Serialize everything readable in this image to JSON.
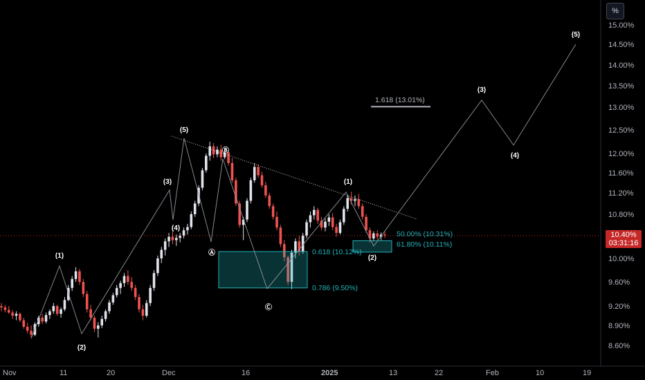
{
  "toolbar": {
    "scale_button": "%"
  },
  "last_price": {
    "value": "10.40%",
    "countdown": "03:31:16",
    "color": "#c62828"
  },
  "colors": {
    "up": "#e0e3eb",
    "down": "#ef5350",
    "fib": "#22b3ba",
    "wave": "#ffffff",
    "trend": "#ffffff"
  },
  "chart_data": {
    "type": "candlestick",
    "y_unit": "%",
    "y_ticks": [
      "15.00%",
      "14.50%",
      "14.00%",
      "13.50%",
      "13.00%",
      "12.50%",
      "12.00%",
      "11.60%",
      "11.20%",
      "10.80%",
      "10.40%",
      "10.00%",
      "9.60%",
      "9.20%",
      "8.90%",
      "8.60%"
    ],
    "x_ticks": [
      "Nov",
      "11",
      "20",
      "Dec",
      "16",
      "2025",
      "13",
      "22",
      "Feb",
      "10",
      "19"
    ],
    "wave_labels": [
      {
        "label": "(1)",
        "value": 9.84
      },
      {
        "label": "(2)",
        "value": 8.74
      },
      {
        "label": "(3)",
        "value": 11.2
      },
      {
        "label": "(4)",
        "value": 10.58
      },
      {
        "label": "(5)",
        "value": 12.25
      },
      {
        "label": "Ⓐ",
        "value": 10.3
      },
      {
        "label": "Ⓑ",
        "value": 12.0
      },
      {
        "label": "Ⓒ",
        "value": 9.48
      },
      {
        "label": "(1)",
        "value": 11.22
      },
      {
        "label": "(2)",
        "value": 10.28
      },
      {
        "label": "(3)",
        "value": 13.18
      },
      {
        "label": "(4)",
        "value": 12.2
      },
      {
        "label": "(5)",
        "value": 14.5
      }
    ],
    "fib_levels": [
      {
        "label": "0.618 (10.12%)",
        "value": 10.12
      },
      {
        "label": "0.786 (9.50%)",
        "value": 9.5
      },
      {
        "label": "50.00% (10.31%)",
        "value": 10.31
      },
      {
        "label": "61.80% (10.11%)",
        "value": 10.11
      },
      {
        "label": "1.618 (13.01%)",
        "value": 13.01
      }
    ],
    "candles": [
      [
        9.2,
        9.25,
        9.12,
        9.18
      ],
      [
        9.18,
        9.22,
        9.1,
        9.14
      ],
      [
        9.14,
        9.2,
        9.08,
        9.1
      ],
      [
        9.1,
        9.14,
        9.0,
        9.05
      ],
      [
        9.05,
        9.12,
        8.98,
        9.08
      ],
      [
        9.08,
        9.1,
        8.95,
        8.98
      ],
      [
        8.98,
        9.02,
        8.85,
        8.88
      ],
      [
        8.88,
        8.94,
        8.78,
        8.82
      ],
      [
        8.82,
        8.9,
        8.72,
        8.76
      ],
      [
        8.76,
        8.95,
        8.74,
        8.92
      ],
      [
        8.92,
        9.05,
        8.88,
        9.02
      ],
      [
        9.02,
        9.08,
        8.92,
        8.96
      ],
      [
        8.96,
        9.1,
        8.93,
        9.06
      ],
      [
        9.06,
        9.15,
        9.0,
        9.12
      ],
      [
        9.12,
        9.25,
        9.08,
        9.2
      ],
      [
        9.2,
        9.22,
        9.05,
        9.08
      ],
      [
        9.08,
        9.18,
        9.02,
        9.15
      ],
      [
        9.15,
        9.35,
        9.12,
        9.3
      ],
      [
        9.3,
        9.55,
        9.28,
        9.5
      ],
      [
        9.5,
        9.7,
        9.45,
        9.65
      ],
      [
        9.65,
        9.85,
        9.6,
        9.78
      ],
      [
        9.78,
        9.82,
        9.55,
        9.6
      ],
      [
        9.6,
        9.65,
        9.35,
        9.4
      ],
      [
        9.4,
        9.45,
        9.1,
        9.15
      ],
      [
        9.15,
        9.22,
        8.98,
        9.02
      ],
      [
        9.02,
        9.05,
        8.8,
        8.85
      ],
      [
        8.85,
        8.95,
        8.72,
        8.9
      ],
      [
        8.9,
        9.05,
        8.86,
        9.0
      ],
      [
        9.0,
        9.15,
        8.96,
        9.12
      ],
      [
        9.12,
        9.3,
        9.08,
        9.26
      ],
      [
        9.26,
        9.42,
        9.22,
        9.38
      ],
      [
        9.38,
        9.55,
        9.34,
        9.5
      ],
      [
        9.5,
        9.62,
        9.4,
        9.58
      ],
      [
        9.58,
        9.75,
        9.52,
        9.7
      ],
      [
        9.7,
        9.8,
        9.55,
        9.6
      ],
      [
        9.6,
        9.68,
        9.45,
        9.5
      ],
      [
        9.5,
        9.55,
        9.3,
        9.35
      ],
      [
        9.35,
        9.4,
        9.1,
        9.15
      ],
      [
        9.15,
        9.22,
        8.98,
        9.05
      ],
      [
        9.05,
        9.3,
        9.02,
        9.25
      ],
      [
        9.25,
        9.55,
        9.2,
        9.5
      ],
      [
        9.5,
        9.8,
        9.45,
        9.75
      ],
      [
        9.75,
        10.05,
        9.7,
        10.0
      ],
      [
        10.0,
        10.2,
        9.92,
        10.15
      ],
      [
        10.15,
        10.35,
        10.05,
        10.3
      ],
      [
        10.3,
        10.45,
        10.2,
        10.38
      ],
      [
        10.38,
        10.48,
        10.25,
        10.32
      ],
      [
        10.32,
        10.42,
        10.22,
        10.36
      ],
      [
        10.36,
        10.45,
        10.28,
        10.4
      ],
      [
        10.4,
        10.55,
        10.35,
        10.5
      ],
      [
        10.5,
        10.62,
        10.42,
        10.56
      ],
      [
        10.56,
        10.85,
        10.52,
        10.8
      ],
      [
        10.8,
        11.05,
        10.75,
        11.0
      ],
      [
        11.0,
        11.35,
        10.95,
        11.3
      ],
      [
        11.3,
        11.7,
        11.25,
        11.65
      ],
      [
        11.65,
        12.0,
        11.6,
        11.95
      ],
      [
        11.95,
        12.25,
        11.85,
        12.15
      ],
      [
        12.15,
        12.22,
        11.9,
        11.98
      ],
      [
        11.98,
        12.15,
        11.92,
        12.08
      ],
      [
        12.08,
        12.18,
        11.85,
        11.92
      ],
      [
        11.92,
        12.1,
        11.88,
        12.02
      ],
      [
        12.02,
        12.08,
        11.75,
        11.8
      ],
      [
        11.8,
        11.9,
        11.4,
        11.45
      ],
      [
        11.45,
        11.5,
        10.95,
        11.0
      ],
      [
        11.0,
        11.05,
        10.55,
        10.6
      ],
      [
        10.6,
        10.75,
        10.32,
        10.7
      ],
      [
        10.7,
        11.1,
        10.65,
        11.05
      ],
      [
        11.05,
        11.5,
        11.0,
        11.45
      ],
      [
        11.45,
        11.8,
        11.4,
        11.72
      ],
      [
        11.72,
        11.78,
        11.5,
        11.55
      ],
      [
        11.55,
        11.62,
        11.3,
        11.35
      ],
      [
        11.35,
        11.42,
        11.1,
        11.15
      ],
      [
        11.15,
        11.2,
        10.9,
        10.95
      ],
      [
        10.95,
        11.0,
        10.7,
        10.75
      ],
      [
        10.75,
        10.85,
        10.5,
        10.55
      ],
      [
        10.55,
        10.6,
        10.2,
        10.25
      ],
      [
        10.25,
        10.32,
        9.95,
        10.02
      ],
      [
        10.02,
        10.05,
        9.55,
        9.6
      ],
      [
        9.6,
        10.15,
        9.48,
        10.1
      ],
      [
        10.1,
        10.35,
        10.0,
        10.3
      ],
      [
        10.3,
        10.4,
        10.05,
        10.12
      ],
      [
        10.12,
        10.45,
        10.08,
        10.4
      ],
      [
        10.4,
        10.7,
        10.35,
        10.65
      ],
      [
        10.65,
        10.85,
        10.55,
        10.78
      ],
      [
        10.78,
        10.95,
        10.7,
        10.88
      ],
      [
        10.88,
        10.92,
        10.62,
        10.68
      ],
      [
        10.68,
        10.75,
        10.5,
        10.55
      ],
      [
        10.55,
        10.72,
        10.48,
        10.66
      ],
      [
        10.66,
        10.8,
        10.58,
        10.74
      ],
      [
        10.74,
        10.82,
        10.5,
        10.56
      ],
      [
        10.56,
        10.62,
        10.38,
        10.45
      ],
      [
        10.45,
        10.7,
        10.42,
        10.65
      ],
      [
        10.65,
        10.95,
        10.6,
        10.9
      ],
      [
        10.9,
        11.15,
        10.85,
        11.1
      ],
      [
        11.1,
        11.22,
        10.98,
        11.05
      ],
      [
        11.05,
        11.15,
        10.95,
        11.08
      ],
      [
        11.08,
        11.18,
        10.9,
        10.95
      ],
      [
        10.95,
        11.0,
        10.7,
        10.75
      ],
      [
        10.75,
        10.8,
        10.45,
        10.5
      ],
      [
        10.5,
        10.55,
        10.28,
        10.35
      ],
      [
        10.35,
        10.48,
        10.3,
        10.44
      ],
      [
        10.44,
        10.5,
        10.33,
        10.38
      ],
      [
        10.38,
        10.46,
        10.32,
        10.42
      ],
      [
        10.42,
        10.48,
        10.36,
        10.4
      ]
    ],
    "projection": [
      {
        "label": "(2)",
        "value": 10.28
      },
      {
        "label": "(3)",
        "value": 13.18
      },
      {
        "label": "(4)",
        "value": 12.2
      },
      {
        "label": "(5)",
        "value": 14.5
      }
    ]
  }
}
